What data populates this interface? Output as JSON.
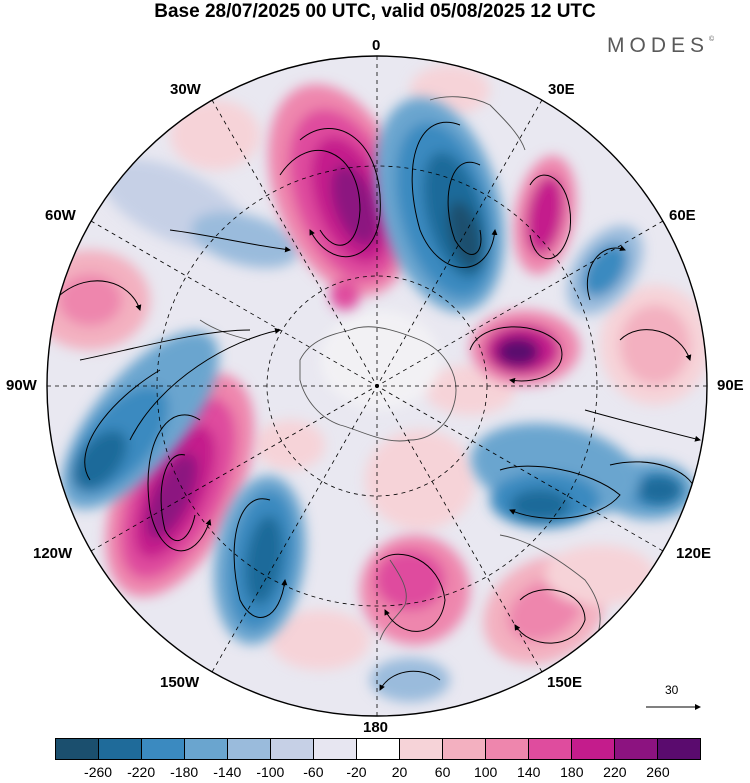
{
  "title": "Base 28/07/2025 00 UTC, valid 05/08/2025 12 UTC",
  "logo": "MODES",
  "logo_mark": "©",
  "meridian_labels": {
    "m0": "0",
    "m30e": "30E",
    "m60e": "60E",
    "m90e": "90E",
    "m120e": "120E",
    "m150e": "150E",
    "m180": "180",
    "m150w": "150W",
    "m120w": "120W",
    "m90w": "90W",
    "m60w": "60W",
    "m30w": "30W"
  },
  "vector_scale": {
    "label": "30"
  },
  "colorbar": {
    "colors": [
      "#1b4f6e",
      "#1f6b9a",
      "#3b8ac0",
      "#6aa5cf",
      "#9abbdc",
      "#c6d0e6",
      "#e7e6f1",
      "#ffffff",
      "#f6d3d8",
      "#f3b0c0",
      "#ee86ad",
      "#df4c9e",
      "#c41c8c",
      "#8c1380",
      "#5a0b6e"
    ],
    "ticks": [
      "-260",
      "-220",
      "-180",
      "-140",
      "-100",
      "-60",
      "-20",
      "20",
      "60",
      "100",
      "140",
      "180",
      "220",
      "260"
    ]
  }
}
